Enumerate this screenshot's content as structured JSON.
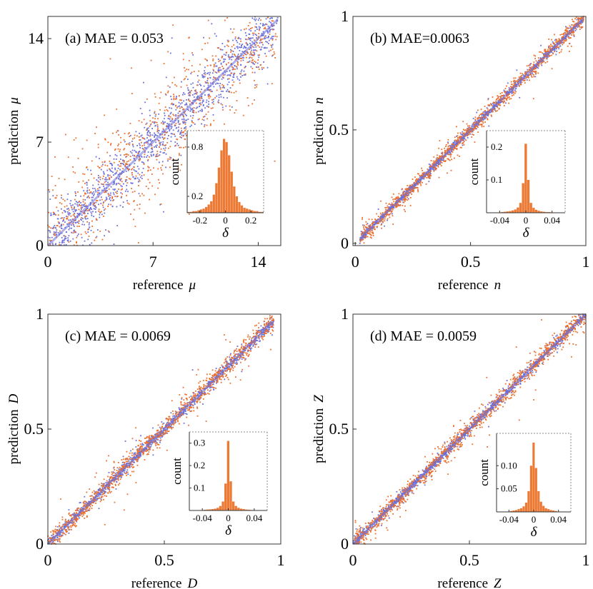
{
  "colors": {
    "blue": "#6b6fd8",
    "orange": "#ec6f2c",
    "hist": "#ec7a35",
    "frame": "#333333",
    "inset_frame": "#888888"
  },
  "chart_data": [
    {
      "type": "scatter",
      "panel": "a",
      "annotation": "(a)  MAE = 0.053",
      "xlabel_text": "reference",
      "xlabel_symbol": "μ",
      "ylabel_text": "prediction",
      "ylabel_symbol": "μ",
      "xlim": [
        0,
        15.5
      ],
      "ylim": [
        0,
        15.5
      ],
      "xticks": [
        0,
        7,
        14
      ],
      "xtick_labels": [
        "0",
        "7",
        "14"
      ],
      "yticks": [
        0,
        7,
        14
      ],
      "ytick_labels": [
        "0",
        "7",
        "14"
      ],
      "grid": false,
      "series": [
        {
          "color": "blue",
          "x_range": [
            0,
            15.3
          ],
          "n": 1300,
          "spread": 0.06
        },
        {
          "color": "orange",
          "x_range": [
            0,
            15.3
          ],
          "n": 900,
          "spread": 0.12
        }
      ],
      "inset": {
        "type": "bar",
        "xlabel": "δ",
        "ylabel": "count",
        "xlim": [
          -0.3,
          0.3
        ],
        "ylim": [
          0,
          1.0
        ],
        "xticks": [
          -0.2,
          0,
          0.2
        ],
        "xtick_labels": [
          "-0.2",
          "0",
          "0.2"
        ],
        "yticks": [
          0.2,
          0.8
        ],
        "ytick_labels": [
          "0.2",
          "0.8"
        ],
        "bins": [
          -0.29,
          -0.27,
          -0.25,
          -0.23,
          -0.21,
          -0.19,
          -0.17,
          -0.15,
          -0.13,
          -0.11,
          -0.09,
          -0.07,
          -0.05,
          -0.03,
          -0.01,
          0.01,
          0.03,
          0.05,
          0.07,
          0.09,
          0.11,
          0.13,
          0.15,
          0.17,
          0.19,
          0.21,
          0.23,
          0.25,
          0.27,
          0.29
        ],
        "values": [
          0.01,
          0.01,
          0.02,
          0.02,
          0.03,
          0.04,
          0.05,
          0.07,
          0.1,
          0.14,
          0.22,
          0.36,
          0.55,
          0.76,
          0.9,
          0.86,
          0.7,
          0.5,
          0.32,
          0.2,
          0.13,
          0.09,
          0.06,
          0.05,
          0.04,
          0.03,
          0.02,
          0.02,
          0.01,
          0.01
        ]
      }
    },
    {
      "type": "scatter",
      "panel": "b",
      "annotation": "(b)  MAE=0.0063",
      "xlabel_text": "reference",
      "xlabel_symbol": "n",
      "ylabel_text": "prediction",
      "ylabel_symbol": "n",
      "xlim": [
        -0.01,
        1
      ],
      "ylim": [
        -0.01,
        1
      ],
      "xticks": [
        0,
        0.5,
        1
      ],
      "xtick_labels": [
        "0",
        "0.5",
        "1"
      ],
      "yticks": [
        0,
        0.5,
        1
      ],
      "ytick_labels": [
        "0",
        "0.5",
        "1"
      ],
      "grid": false,
      "series": [
        {
          "color": "blue",
          "x_range": [
            0.02,
            0.99
          ],
          "n": 1300,
          "spread": 0.008
        },
        {
          "color": "orange",
          "x_range": [
            0.02,
            0.99
          ],
          "n": 1100,
          "spread": 0.018
        }
      ],
      "inset": {
        "type": "bar",
        "xlabel": "δ",
        "ylabel": "count",
        "xlim": [
          -0.06,
          0.06
        ],
        "ylim": [
          0,
          0.25
        ],
        "xticks": [
          -0.04,
          0,
          0.04
        ],
        "xtick_labels": [
          "-0.04",
          "0",
          "0.04"
        ],
        "yticks": [
          0.1,
          0.2
        ],
        "ytick_labels": [
          "0.1",
          "0.2"
        ],
        "bins": [
          -0.036,
          -0.032,
          -0.028,
          -0.024,
          -0.02,
          -0.016,
          -0.012,
          -0.008,
          -0.004,
          0.0,
          0.004,
          0.008,
          0.012,
          0.016,
          0.02,
          0.024,
          0.028,
          0.032,
          0.036
        ],
        "values": [
          0.002,
          0.003,
          0.004,
          0.005,
          0.007,
          0.01,
          0.016,
          0.03,
          0.09,
          0.21,
          0.1,
          0.03,
          0.015,
          0.009,
          0.006,
          0.004,
          0.003,
          0.002,
          0.002
        ]
      }
    },
    {
      "type": "scatter",
      "panel": "c",
      "annotation": "(c)  MAE = 0.0069",
      "xlabel_text": "reference",
      "xlabel_symbol": "D",
      "ylabel_text": "prediction",
      "ylabel_symbol": "D",
      "xlim": [
        0,
        1
      ],
      "ylim": [
        0,
        1
      ],
      "xticks": [
        0,
        0.5,
        1
      ],
      "xtick_labels": [
        "0",
        "0.5",
        "1"
      ],
      "yticks": [
        0,
        0.5,
        1
      ],
      "ytick_labels": [
        "0",
        "0.5",
        "1"
      ],
      "grid": false,
      "series": [
        {
          "color": "blue",
          "x_range": [
            0,
            0.97
          ],
          "n": 1200,
          "spread": 0.012
        },
        {
          "color": "orange",
          "x_range": [
            0,
            0.97
          ],
          "n": 1100,
          "spread": 0.022
        }
      ],
      "inset": {
        "type": "bar",
        "xlabel": "δ",
        "ylabel": "count",
        "xlim": [
          -0.06,
          0.06
        ],
        "ylim": [
          0,
          0.35
        ],
        "xticks": [
          -0.04,
          0,
          0.04
        ],
        "xtick_labels": [
          "-0.04",
          "0",
          "0.04"
        ],
        "yticks": [
          0.1,
          0.2,
          0.3
        ],
        "ytick_labels": [
          "0.1",
          "0.2",
          "0.3"
        ],
        "bins": [
          -0.036,
          -0.032,
          -0.028,
          -0.024,
          -0.02,
          -0.016,
          -0.012,
          -0.008,
          -0.004,
          0.0,
          0.004,
          0.008,
          0.012,
          0.016,
          0.02,
          0.024,
          0.028,
          0.032,
          0.036
        ],
        "values": [
          0.003,
          0.004,
          0.005,
          0.006,
          0.008,
          0.012,
          0.02,
          0.04,
          0.12,
          0.31,
          0.13,
          0.04,
          0.02,
          0.012,
          0.008,
          0.006,
          0.004,
          0.003,
          0.002
        ]
      }
    },
    {
      "type": "scatter",
      "panel": "d",
      "annotation": "(d)  MAE = 0.0059",
      "xlabel_text": "reference",
      "xlabel_symbol": "Z",
      "ylabel_text": "prediction",
      "ylabel_symbol": "Z",
      "xlim": [
        0,
        1
      ],
      "ylim": [
        0,
        1
      ],
      "xticks": [
        0,
        0.5,
        1
      ],
      "xtick_labels": [
        "0",
        "0.5",
        "1"
      ],
      "yticks": [
        0,
        0.5,
        1
      ],
      "ytick_labels": [
        "0",
        "0.5",
        "1"
      ],
      "grid": false,
      "series": [
        {
          "color": "blue",
          "x_range": [
            0,
            1
          ],
          "n": 1400,
          "spread": 0.009
        },
        {
          "color": "orange",
          "x_range": [
            0,
            1
          ],
          "n": 1100,
          "spread": 0.02
        }
      ],
      "inset": {
        "type": "bar",
        "xlabel": "δ",
        "ylabel": "count",
        "xlim": [
          -0.06,
          0.06
        ],
        "ylim": [
          0,
          0.17
        ],
        "xticks": [
          -0.04,
          0,
          0.04
        ],
        "xtick_labels": [
          "-0.04",
          "0",
          "0.04"
        ],
        "yticks": [
          0.05,
          0.1
        ],
        "ytick_labels": [
          "0.05",
          "0.10"
        ],
        "bins": [
          -0.036,
          -0.032,
          -0.028,
          -0.024,
          -0.02,
          -0.016,
          -0.012,
          -0.008,
          -0.004,
          0.0,
          0.004,
          0.008,
          0.012,
          0.016,
          0.02,
          0.024,
          0.028,
          0.032,
          0.036
        ],
        "values": [
          0.002,
          0.003,
          0.004,
          0.006,
          0.008,
          0.012,
          0.02,
          0.045,
          0.1,
          0.15,
          0.095,
          0.045,
          0.022,
          0.013,
          0.008,
          0.006,
          0.004,
          0.003,
          0.002
        ]
      }
    }
  ]
}
